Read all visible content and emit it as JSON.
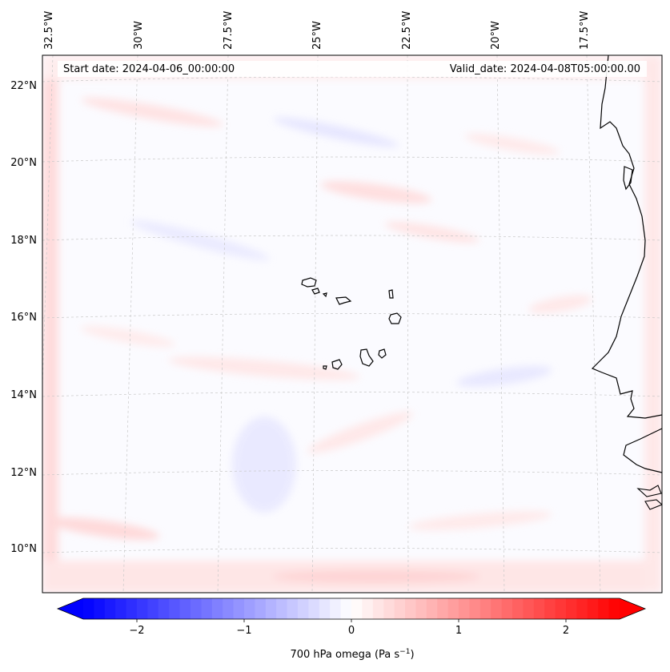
{
  "map": {
    "start_date": "Start date: 2024-04-06_00:00:00",
    "valid_date": "Valid_date: 2024-04-08T05:00:00.00",
    "lon_labels": [
      "32.5°W",
      "30°W",
      "27.5°W",
      "25°W",
      "22.5°W",
      "20°W",
      "17.5°W"
    ],
    "lat_labels": [
      "22°N",
      "20°N",
      "18°N",
      "16°N",
      "14°N",
      "12°N",
      "10°N"
    ],
    "colorbar": {
      "label": "700 hPa omega (Pa s",
      "label_sup": "−1",
      "label_close": ")",
      "ticks": [
        "−2",
        "−1",
        "0",
        "1",
        "2"
      ],
      "tick_values": [
        -2,
        -1,
        0,
        1,
        2
      ],
      "range": [
        -2.5,
        2.5
      ],
      "colormap": "bwr",
      "extend": "both"
    },
    "colors": {
      "negative": "#0000ff",
      "neutral": "#ffffff",
      "positive": "#ff0000",
      "coastline": "#000000",
      "gridline": "#bbbbbb"
    }
  }
}
